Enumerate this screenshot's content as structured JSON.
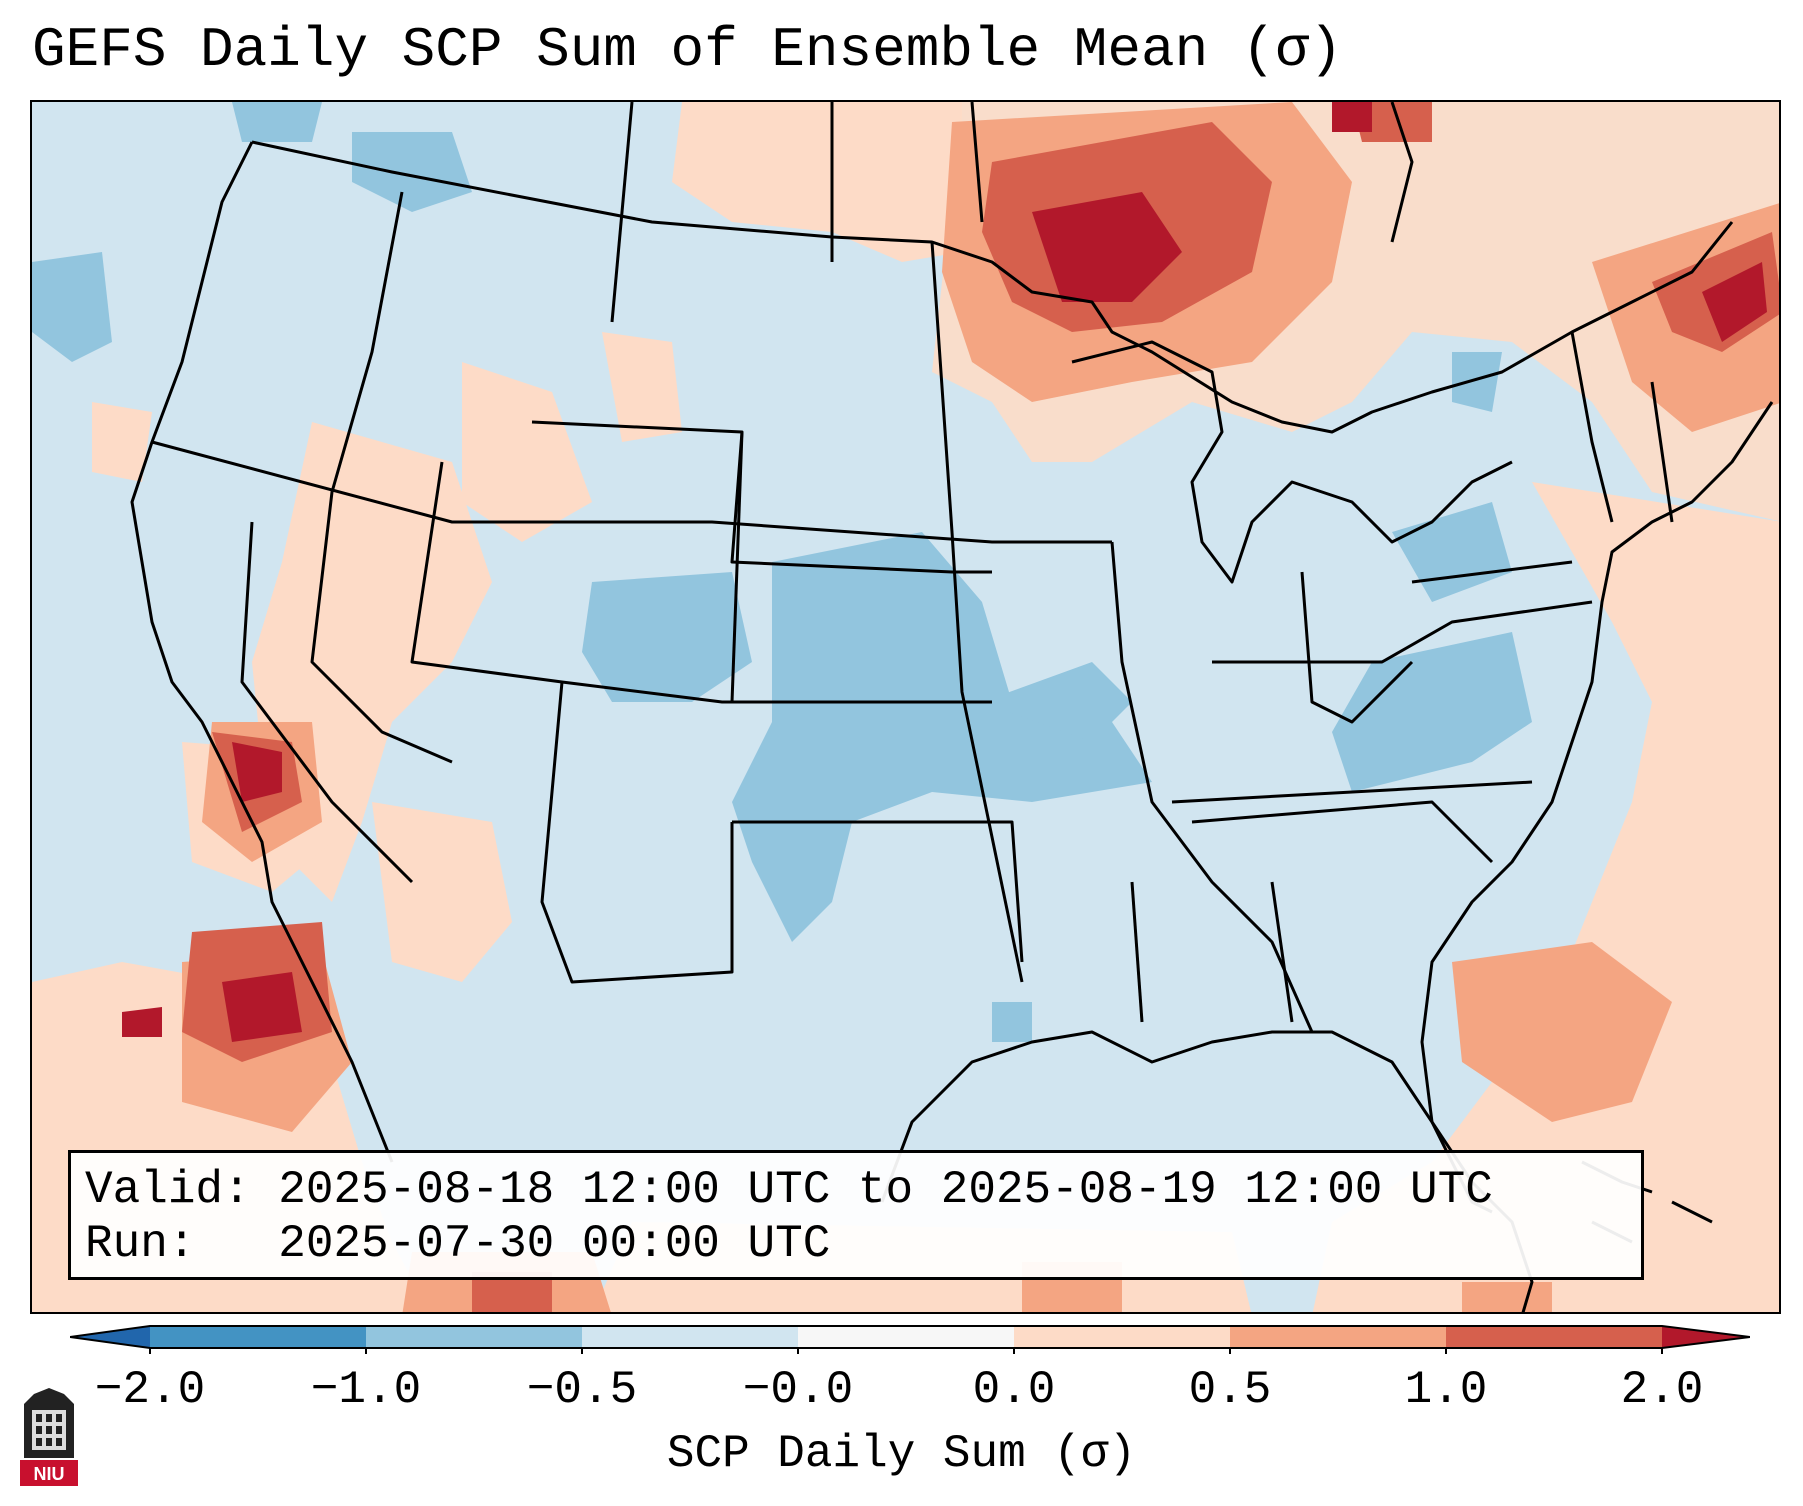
{
  "title": "GEFS Daily SCP Sum of Ensemble Mean (σ)",
  "info": {
    "valid_line": "Valid: 2025-08-18 12:00 UTC to 2025-08-19 12:00 UTC",
    "run_line": "Run:   2025-07-30 00:00 UTC"
  },
  "colorbar": {
    "label": "SCP Daily Sum (σ)",
    "ticks": [
      "−2.0",
      "−1.0",
      "−0.5",
      "−0.0",
      "0.0",
      "0.5",
      "1.0",
      "2.0"
    ],
    "colors": [
      "#2166ac",
      "#4393c3",
      "#92c5de",
      "#d1e5f0",
      "#f7f7f7",
      "#fddbc7",
      "#f4a582",
      "#d6604d",
      "#b2182b"
    ]
  },
  "logo": {
    "text": "NIU"
  },
  "map": {
    "projection": "Lambert conformal, CONUS",
    "field_colors": {
      "background": "#d1e5f0",
      "low": "#92c5de",
      "high_light": "#fddbc7",
      "high_mid": "#f4a582",
      "high_strong": "#d6604d",
      "high_max": "#b2182b"
    }
  }
}
